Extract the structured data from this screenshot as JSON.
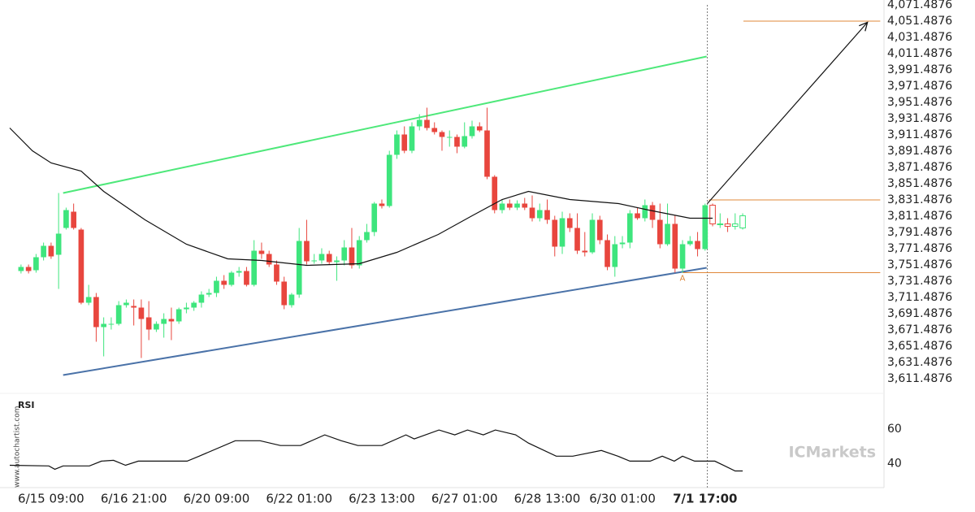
{
  "chart_data": {
    "type": "candlestick",
    "categories": [
      null,
      null,
      null,
      null,
      "6/15 09:00",
      null,
      null,
      null,
      null,
      null,
      null,
      null,
      null,
      null,
      null,
      "6/16 21:00",
      null,
      null,
      null,
      null,
      null,
      null,
      null,
      null,
      null,
      null,
      "6/20 09:00",
      null,
      null,
      null,
      null,
      null,
      null,
      null,
      null,
      null,
      null,
      "6/22 01:00",
      null,
      null,
      null,
      null,
      null,
      null,
      null,
      null,
      null,
      null,
      "6/23 13:00",
      null,
      null,
      null,
      null,
      null,
      null,
      null,
      null,
      null,
      null,
      "6/27 01:00",
      null,
      null,
      null,
      null,
      null,
      null,
      null,
      null,
      null,
      null,
      "6/28 13:00",
      null,
      null,
      null,
      null,
      null,
      null,
      null,
      null,
      null,
      "6/30 01:00",
      null,
      null,
      null,
      null,
      null,
      null,
      null,
      null,
      null,
      null,
      "7/1 17:00",
      null,
      null,
      null,
      null,
      null
    ],
    "ohlc": [
      [
        3744,
        3752,
        3741,
        3749
      ],
      [
        3749,
        3752,
        3741,
        3744
      ],
      [
        3745,
        3765,
        3742,
        3761
      ],
      [
        3761,
        3779,
        3757,
        3775
      ],
      [
        3775,
        3779,
        3759,
        3762
      ],
      [
        3764,
        3840,
        3722,
        3790
      ],
      [
        3797,
        3822,
        3795,
        3819
      ],
      [
        3817,
        3827,
        3795,
        3797
      ],
      [
        3795,
        3797,
        3703,
        3705
      ],
      [
        3705,
        3727,
        3702,
        3712
      ],
      [
        3712,
        3717,
        3657,
        3675
      ],
      [
        3675,
        3687,
        3639,
        3679
      ],
      [
        3679,
        3687,
        3672,
        3679
      ],
      [
        3679,
        3707,
        3677,
        3702
      ],
      [
        3702,
        3709,
        3699,
        3705
      ],
      [
        3701,
        3709,
        3677,
        3699
      ],
      [
        3699,
        3709,
        3637,
        3685
      ],
      [
        3687,
        3707,
        3659,
        3672
      ],
      [
        3672,
        3682,
        3669,
        3679
      ],
      [
        3679,
        3692,
        3662,
        3685
      ],
      [
        3685,
        3699,
        3659,
        3682
      ],
      [
        3682,
        3699,
        3679,
        3697
      ],
      [
        3697,
        3705,
        3692,
        3699
      ],
      [
        3699,
        3707,
        3695,
        3705
      ],
      [
        3705,
        3719,
        3699,
        3715
      ],
      [
        3715,
        3722,
        3712,
        3717
      ],
      [
        3717,
        3737,
        3712,
        3732
      ],
      [
        3732,
        3739,
        3722,
        3727
      ],
      [
        3727,
        3744,
        3725,
        3742
      ],
      [
        3742,
        3749,
        3737,
        3744
      ],
      [
        3744,
        3749,
        3725,
        3727
      ],
      [
        3727,
        3782,
        3725,
        3769
      ],
      [
        3769,
        3779,
        3759,
        3765
      ],
      [
        3765,
        3769,
        3749,
        3752
      ],
      [
        3752,
        3757,
        3727,
        3731
      ],
      [
        3731,
        3737,
        3697,
        3702
      ],
      [
        3702,
        3717,
        3699,
        3715
      ],
      [
        3715,
        3797,
        3711,
        3781
      ],
      [
        3781,
        3807,
        3752,
        3756
      ],
      [
        3756,
        3765,
        3753,
        3757
      ],
      [
        3757,
        3772,
        3753,
        3765
      ],
      [
        3765,
        3769,
        3752,
        3755
      ],
      [
        3755,
        3762,
        3732,
        3757
      ],
      [
        3757,
        3782,
        3751,
        3773
      ],
      [
        3773,
        3797,
        3747,
        3751
      ],
      [
        3751,
        3787,
        3747,
        3782
      ],
      [
        3782,
        3802,
        3779,
        3792
      ],
      [
        3792,
        3829,
        3787,
        3827
      ],
      [
        3827,
        3832,
        3821,
        3824
      ],
      [
        3824,
        3892,
        3822,
        3887
      ],
      [
        3887,
        3917,
        3882,
        3912
      ],
      [
        3912,
        3922,
        3889,
        3892
      ],
      [
        3892,
        3927,
        3889,
        3922
      ],
      [
        3922,
        3937,
        3917,
        3930
      ],
      [
        3930,
        3945,
        3917,
        3920
      ],
      [
        3920,
        3927,
        3912,
        3915
      ],
      [
        3915,
        3917,
        3892,
        3909
      ],
      [
        3909,
        3917,
        3897,
        3909
      ],
      [
        3909,
        3912,
        3889,
        3897
      ],
      [
        3897,
        3927,
        3895,
        3910
      ],
      [
        3910,
        3929,
        3907,
        3922
      ],
      [
        3922,
        3927,
        3915,
        3917
      ],
      [
        3917,
        3945,
        3857,
        3860
      ],
      [
        3860,
        3862,
        3815,
        3819
      ],
      [
        3819,
        3832,
        3815,
        3827
      ],
      [
        3827,
        3832,
        3819,
        3822
      ],
      [
        3822,
        3831,
        3819,
        3827
      ],
      [
        3827,
        3834,
        3819,
        3822
      ],
      [
        3822,
        3837,
        3805,
        3809
      ],
      [
        3809,
        3827,
        3805,
        3819
      ],
      [
        3819,
        3832,
        3802,
        3807
      ],
      [
        3807,
        3812,
        3762,
        3774
      ],
      [
        3774,
        3817,
        3765,
        3809
      ],
      [
        3809,
        3815,
        3792,
        3797
      ],
      [
        3797,
        3815,
        3765,
        3769
      ],
      [
        3769,
        3792,
        3762,
        3767
      ],
      [
        3767,
        3815,
        3765,
        3807
      ],
      [
        3807,
        3812,
        3777,
        3782
      ],
      [
        3782,
        3789,
        3745,
        3749
      ],
      [
        3749,
        3787,
        3737,
        3777
      ],
      [
        3777,
        3787,
        3772,
        3779
      ],
      [
        3779,
        3819,
        3772,
        3815
      ],
      [
        3815,
        3822,
        3807,
        3809
      ],
      [
        3809,
        3832,
        3805,
        3825
      ],
      [
        3825,
        3829,
        3797,
        3807
      ],
      [
        3807,
        3827,
        3772,
        3777
      ],
      [
        3777,
        3827,
        3775,
        3802
      ],
      [
        3802,
        3812,
        3742,
        3747
      ],
      [
        3747,
        3782,
        3742,
        3777
      ],
      [
        3777,
        3787,
        3775,
        3781
      ],
      [
        3781,
        3792,
        3762,
        3771
      ],
      [
        3771,
        3827,
        3769,
        3825
      ],
      [
        3825,
        3827,
        3799,
        3802
      ],
      [
        3802,
        3815,
        3797,
        3802
      ],
      [
        3802,
        3809,
        3792,
        3799
      ],
      [
        3799,
        3815,
        3795,
        3802
      ],
      [
        3797,
        3815,
        3795,
        3812
      ]
    ],
    "up_color": "#3ee57d",
    "down_color": "#e8463e",
    "hollow_from": 92,
    "xlim": [
      -1.5,
      114.8
    ],
    "ylim": [
      3597.4876,
      4077.4876
    ],
    "yticks": [
      {
        "value": 4071.4876,
        "label": "4,071.4876"
      },
      {
        "value": 4051.4876,
        "label": "4,051.4876"
      },
      {
        "value": 4031.4876,
        "label": "4,031.4876"
      },
      {
        "value": 4011.4876,
        "label": "4,011.4876"
      },
      {
        "value": 3991.4876,
        "label": "3,991.4876"
      },
      {
        "value": 3971.4876,
        "label": "3,971.4876"
      },
      {
        "value": 3951.4876,
        "label": "3,951.4876"
      },
      {
        "value": 3931.4876,
        "label": "3,931.4876"
      },
      {
        "value": 3911.4876,
        "label": "3,911.4876"
      },
      {
        "value": 3891.4876,
        "label": "3,891.4876"
      },
      {
        "value": 3871.4876,
        "label": "3,871.4876"
      },
      {
        "value": 3851.4876,
        "label": "3,851.4876"
      },
      {
        "value": 3831.4876,
        "label": "3,831.4876"
      },
      {
        "value": 3811.4876,
        "label": "3,811.4876"
      },
      {
        "value": 3791.4876,
        "label": "3,791.4876"
      },
      {
        "value": 3771.4876,
        "label": "3,771.4876"
      },
      {
        "value": 3751.4876,
        "label": "3,751.4876"
      },
      {
        "value": 3731.4876,
        "label": "3,731.4876"
      },
      {
        "value": 3711.4876,
        "label": "3,711.4876"
      },
      {
        "value": 3691.4876,
        "label": "3,691.4876"
      },
      {
        "value": 3671.4876,
        "label": "3,671.4876"
      },
      {
        "value": 3651.4876,
        "label": "3,651.4876"
      },
      {
        "value": 3631.4876,
        "label": "3,631.4876"
      },
      {
        "value": 3611.4876,
        "label": "3,611.4876"
      }
    ],
    "ma": {
      "color": "#111111",
      "x": [
        -1.5,
        1.5,
        4,
        8,
        11,
        16.5,
        22,
        27.5,
        32,
        38,
        45,
        50,
        55.5,
        60,
        64,
        67.5,
        73,
        79.5,
        83.5,
        89,
        92
      ],
      "values": [
        3920,
        3892,
        3877,
        3867,
        3842,
        3807,
        3777,
        3759,
        3757,
        3751,
        3753,
        3767,
        3789,
        3812,
        3832,
        3842,
        3832,
        3827,
        3819,
        3809,
        3809
      ]
    },
    "upper_line": {
      "color": "#4ee87a",
      "x": [
        5.6,
        91.2
      ],
      "values": [
        3840,
        4008
      ]
    },
    "lower_line": {
      "color": "#4a72a8",
      "x": [
        5.6,
        91.2
      ],
      "values": [
        3616,
        3748
      ]
    },
    "levels": [
      {
        "value": 4051.4876,
        "from": 96.1,
        "to": 114.3
      },
      {
        "value": 3831.4876,
        "from": 91.5,
        "to": 114.3
      },
      {
        "value": 3742,
        "from": 88,
        "to": 114.3
      }
    ],
    "level_color": "#e0883a",
    "arrow": {
      "x": [
        91.3,
        112.6
      ],
      "values": [
        3827,
        4050
      ]
    },
    "pattern_label": {
      "text": "A",
      "x": 88,
      "value": 3735
    },
    "rsi": {
      "title": "RSI",
      "ylim": [
        26,
        78
      ],
      "yticks": [
        60,
        40
      ],
      "x": [
        -1.5,
        3.7,
        4.5,
        5.6,
        9.1,
        10.7,
        12.3,
        13.9,
        15.6,
        22.1,
        23.7,
        28.5,
        31.8,
        34.5,
        37.2,
        40.4,
        42.6,
        44.8,
        48,
        51.2,
        52.3,
        55.6,
        57.7,
        59.4,
        61.5,
        63.1,
        65.8,
        67.5,
        71.2,
        73.4,
        77.2,
        79.4,
        81,
        83.7,
        85.3,
        86.9,
        88,
        89.6,
        92.3,
        95,
        96
      ],
      "values": [
        39,
        38.6,
        36.7,
        38.6,
        38.6,
        41.4,
        41.9,
        39,
        41.4,
        41.4,
        44.3,
        53.3,
        53.3,
        50.5,
        50.5,
        56.7,
        53.3,
        50.5,
        50.5,
        56.7,
        54.3,
        59.5,
        56.7,
        59.5,
        56.7,
        59.5,
        56.7,
        51.9,
        44.3,
        44.3,
        47.6,
        44.3,
        41.4,
        41.4,
        44.3,
        41.4,
        44.3,
        41.4,
        41.4,
        35.7,
        35.7
      ]
    },
    "watermark": "www.autochartist.com",
    "brand": "ICMarkets"
  }
}
